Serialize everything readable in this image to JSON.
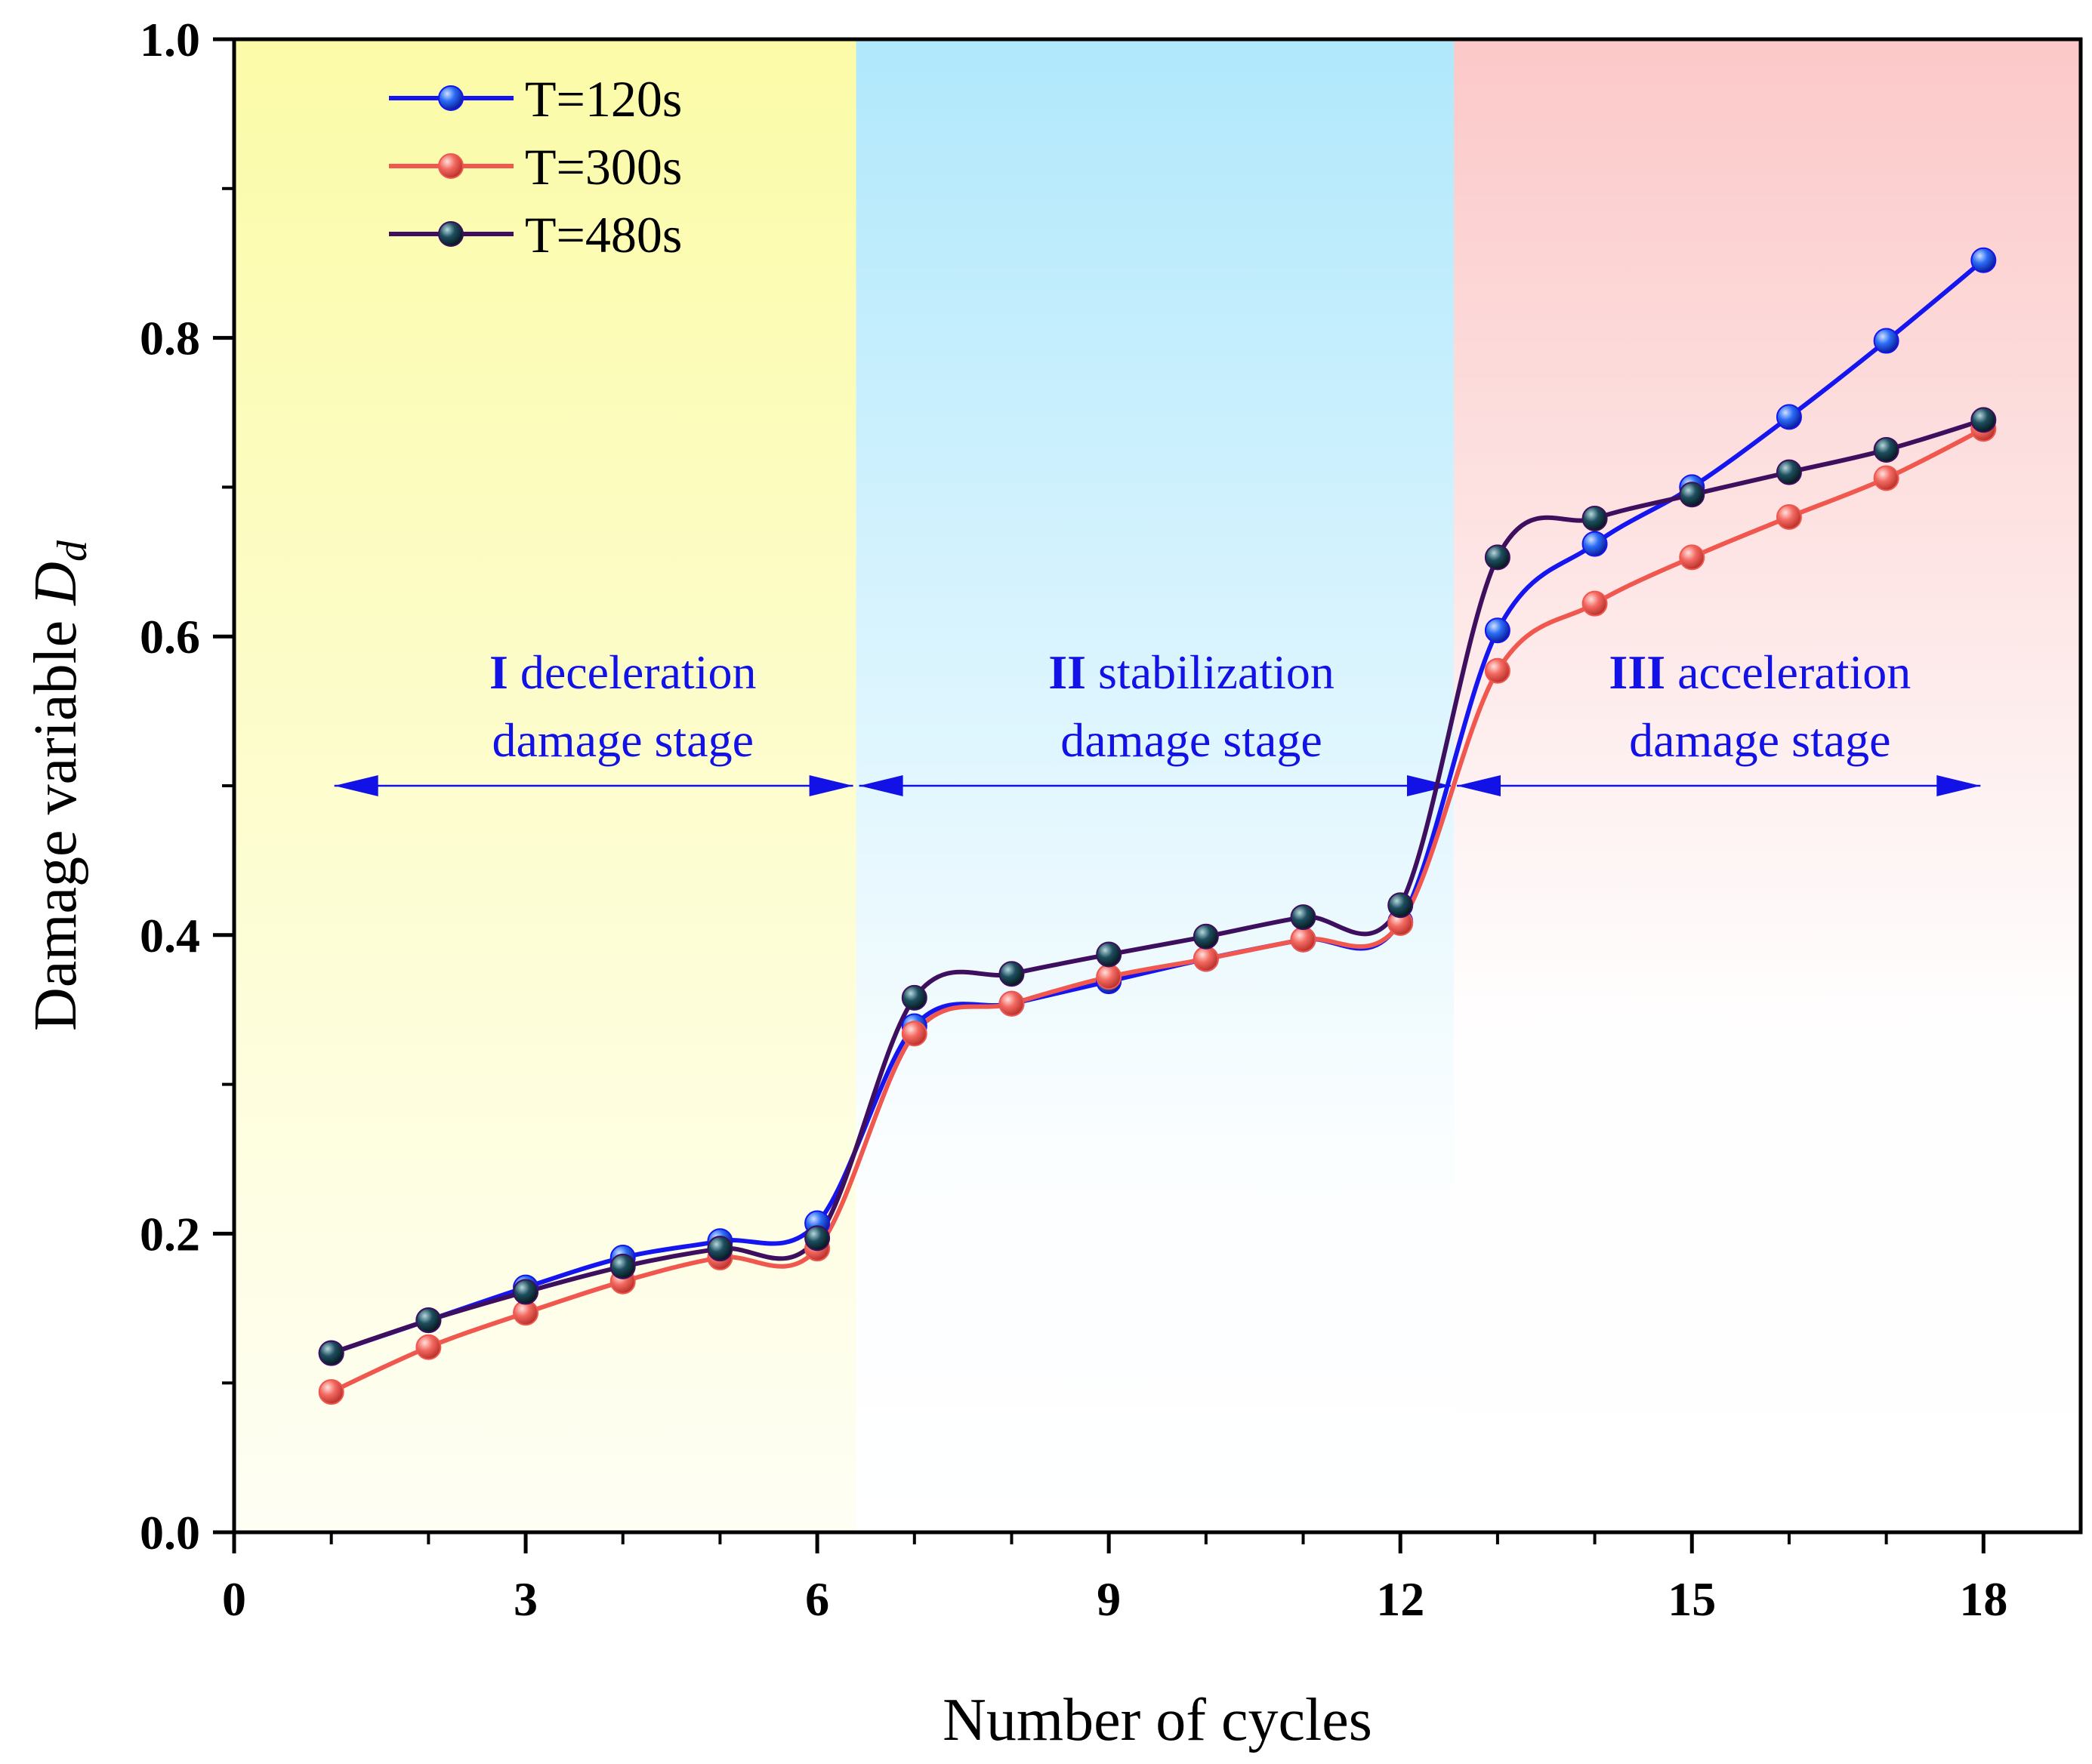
{
  "chart_data": {
    "type": "line",
    "xlabel": "Number of cycles",
    "ylabel": "Damage variable",
    "ylabel_symbol": "D",
    "ylabel_subscript": "d",
    "xlim": [
      0,
      19
    ],
    "ylim": [
      0,
      1.0
    ],
    "xticks": [
      0,
      3,
      6,
      9,
      12,
      15,
      18
    ],
    "yticks": [
      0.0,
      0.2,
      0.4,
      0.6,
      0.8,
      1.0
    ],
    "ytick_labels": [
      "0.0",
      "0.2",
      "0.4",
      "0.6",
      "0.8",
      "1.0"
    ],
    "x": [
      1,
      2,
      3,
      4,
      5,
      6,
      7,
      8,
      9,
      10,
      11,
      12,
      13,
      14,
      15,
      16,
      17,
      18
    ],
    "series": [
      {
        "name": "T=120s",
        "color": "#1515f0",
        "marker": "#2a6cf5",
        "values": [
          0.12,
          0.142,
          0.164,
          0.184,
          0.195,
          0.207,
          0.339,
          0.354,
          0.369,
          0.384,
          0.397,
          0.409,
          0.604,
          0.662,
          0.7,
          0.747,
          0.798,
          0.852
        ]
      },
      {
        "name": "T=300s",
        "color": "#f0584f",
        "marker": "#f36a62",
        "values": [
          0.094,
          0.124,
          0.147,
          0.168,
          0.184,
          0.19,
          0.334,
          0.354,
          0.372,
          0.384,
          0.397,
          0.408,
          0.577,
          0.622,
          0.653,
          0.68,
          0.706,
          0.739
        ]
      },
      {
        "name": "T=480s",
        "color": "#3d0f5e",
        "marker": "#1d4e5e",
        "values": [
          0.12,
          0.142,
          0.161,
          0.178,
          0.19,
          0.197,
          0.358,
          0.374,
          0.387,
          0.399,
          0.412,
          0.42,
          0.653,
          0.679,
          0.695,
          0.71,
          0.725,
          0.745
        ]
      }
    ],
    "stages": [
      {
        "num": "I",
        "line1": "deceleration",
        "line2": "damage stage",
        "x_range": [
          0,
          6.4
        ],
        "color": "#fbfba8"
      },
      {
        "num": "II",
        "line1": "stabilization",
        "line2": "damage stage",
        "x_range": [
          6.4,
          12.55
        ],
        "color": "#b0e8fc"
      },
      {
        "num": "III",
        "line1": "acceleration",
        "line2": "damage stage",
        "x_range": [
          12.55,
          19
        ],
        "color": "#fcc8c8"
      }
    ],
    "arrow_level": 0.5,
    "legend_position": "top-left",
    "grid": false
  }
}
